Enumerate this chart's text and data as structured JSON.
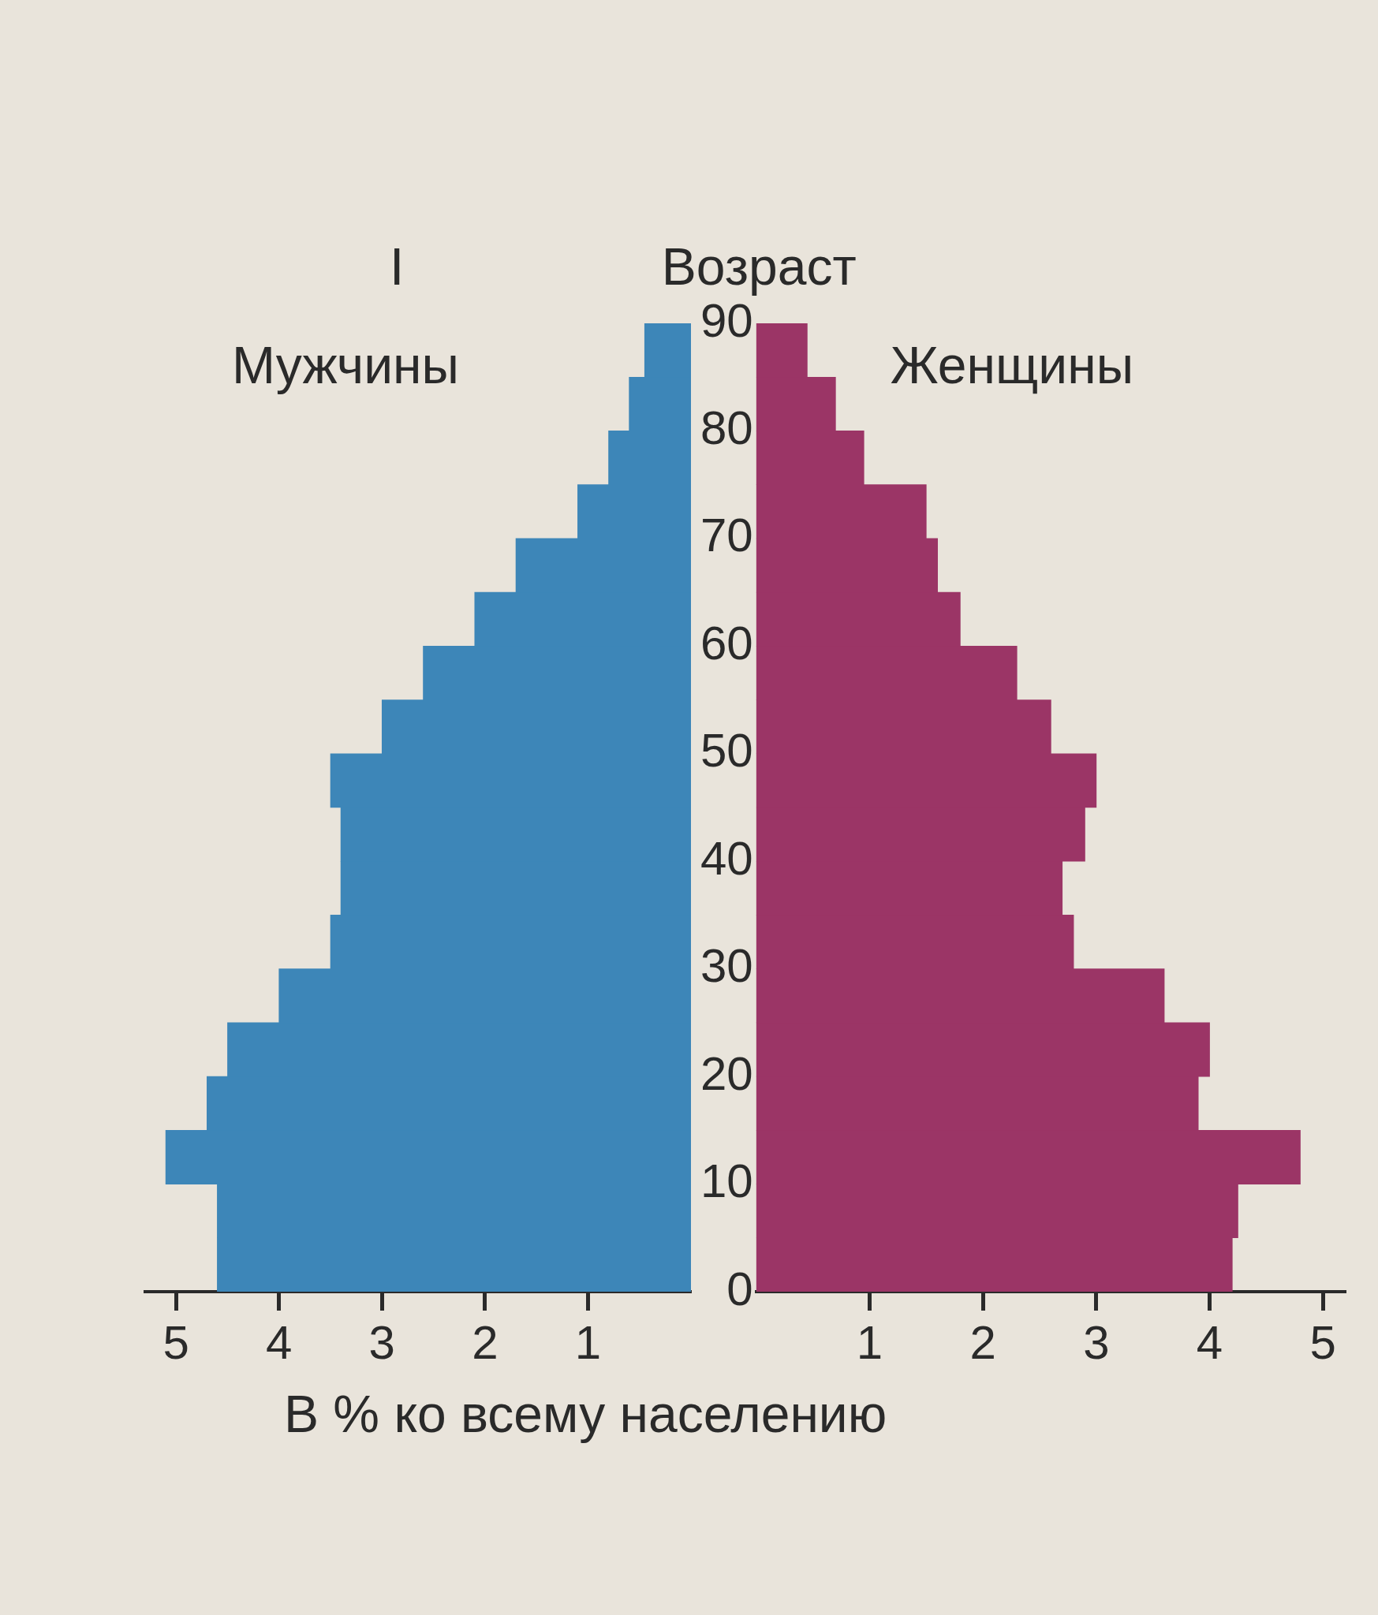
{
  "chart_data": [
    {
      "type": "bar",
      "orientation": "horizontal",
      "annotations": [
        "I"
      ],
      "xlabel": "В % ко всему населению",
      "x": [
        2.5,
        7.5,
        12.5,
        17.5,
        22.5,
        27.5,
        32.5,
        37.5,
        42.5,
        47.5,
        52.5,
        57.5,
        62.5,
        67.5,
        72.5,
        77.5,
        82.5,
        87.5
      ],
      "series": [
        {
          "name": "Мужчины",
          "color": "#3d86b8",
          "values": [
            4.6,
            4.6,
            5.1,
            4.7,
            4.5,
            4.0,
            3.5,
            3.4,
            3.4,
            3.5,
            3.0,
            2.6,
            2.1,
            1.7,
            1.1,
            0.8,
            0.6,
            0.45
          ]
        }
      ],
      "xlim": [
        5.3,
        0
      ],
      "xticks": [
        5,
        4,
        3,
        2,
        1
      ],
      "ylim": [
        0,
        90
      ],
      "yticks": [
        0,
        10,
        20,
        30,
        40,
        50,
        60,
        70,
        80,
        90
      ],
      "tick_labels": "x"
    },
    {
      "type": "bar",
      "orientation": "horizontal",
      "ylabel": "Возраст",
      "x": [
        2.5,
        7.5,
        12.5,
        17.5,
        22.5,
        27.5,
        32.5,
        37.5,
        42.5,
        47.5,
        52.5,
        57.5,
        62.5,
        67.5,
        72.5,
        77.5,
        82.5,
        87.5
      ],
      "series": [
        {
          "name": "Женщины",
          "color": "#9b3566",
          "values": [
            4.2,
            4.25,
            4.8,
            3.9,
            4.0,
            3.6,
            2.8,
            2.7,
            2.9,
            3.0,
            2.6,
            2.3,
            1.8,
            1.6,
            1.5,
            0.95,
            0.7,
            0.45
          ]
        }
      ],
      "xlim": [
        0,
        5.2
      ],
      "xticks": [
        1,
        2,
        3,
        4,
        5
      ],
      "ylim": [
        0,
        90
      ],
      "yticks": [
        0,
        10,
        20,
        30,
        40,
        50,
        60,
        70,
        80,
        90
      ]
    }
  ]
}
